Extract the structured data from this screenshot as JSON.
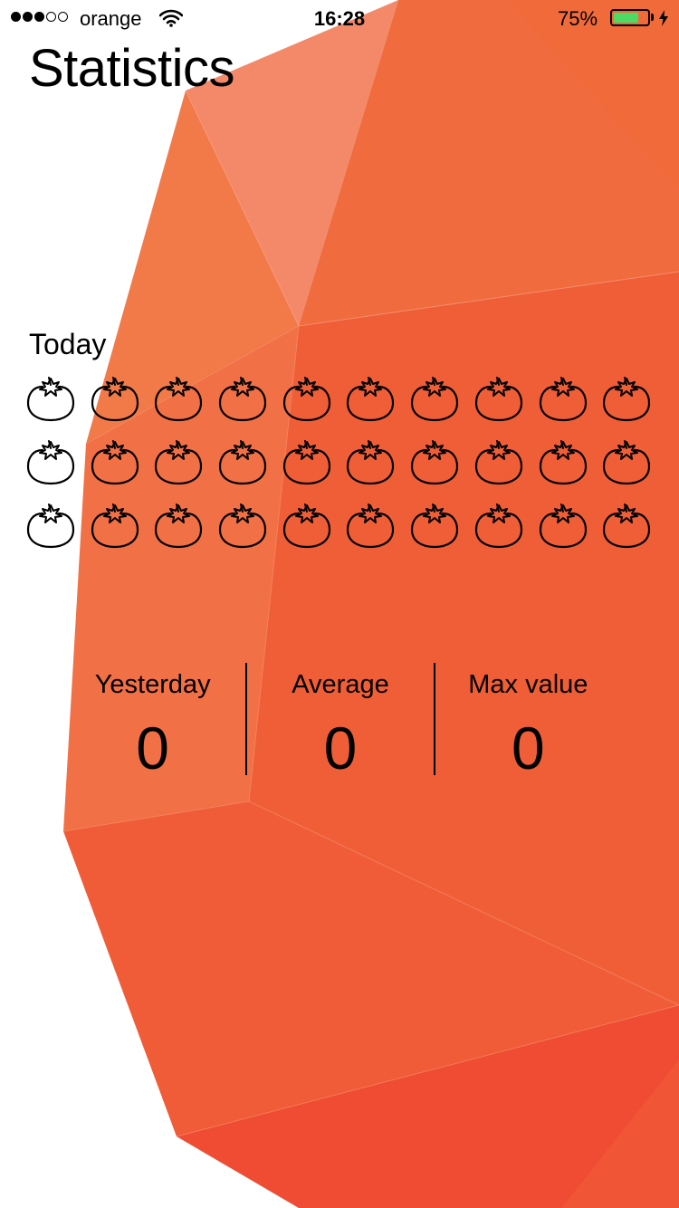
{
  "status_bar": {
    "signal": {
      "filled": 3,
      "total": 5
    },
    "carrier": "orange",
    "time": "16:28",
    "battery_percent": "75%",
    "battery_level": 0.75,
    "battery_color": "#4cd964",
    "icons": [
      "wifi-icon",
      "battery-icon",
      "charging-bolt-icon"
    ]
  },
  "page": {
    "title": "Statistics"
  },
  "today": {
    "label": "Today",
    "grid": {
      "rows": 3,
      "columns": 10,
      "filled_count": 0,
      "icon": "tomato-icon"
    }
  },
  "stats": [
    {
      "label": "Yesterday",
      "value": "0"
    },
    {
      "label": "Average",
      "value": "0"
    },
    {
      "label": "Max value",
      "value": "0"
    }
  ],
  "colors": {
    "background": "#ffffff",
    "orange_light": "#f4896a",
    "orange_mid": "#f2774a",
    "orange_main": "#f0643a",
    "orange_deep": "#f05c38",
    "red_orange": "#ef4d33",
    "text": "#000000"
  }
}
